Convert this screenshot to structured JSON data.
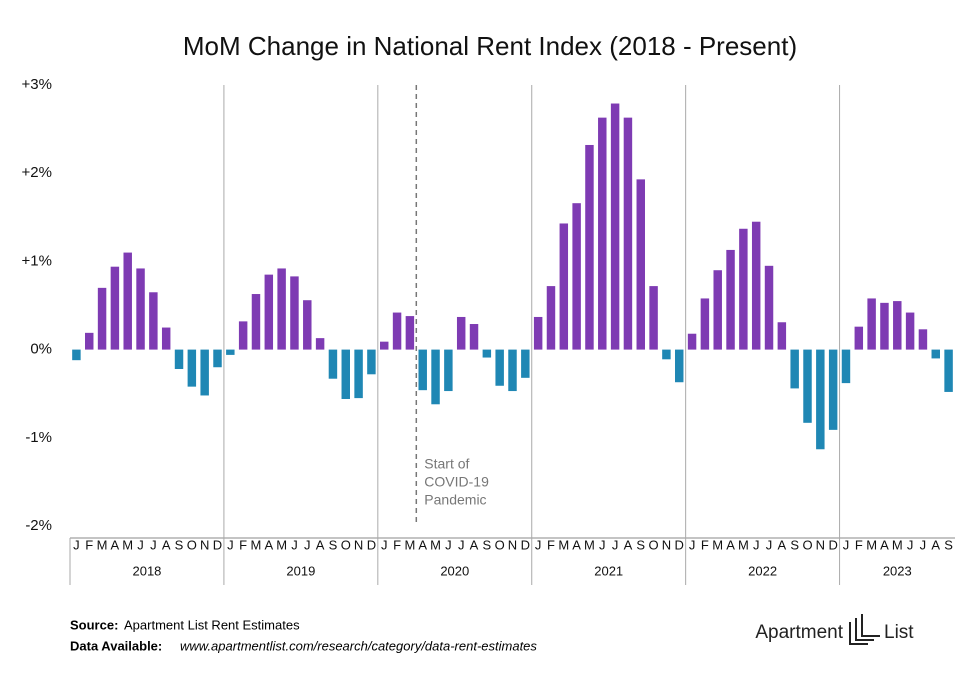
{
  "chart_data": {
    "type": "bar",
    "title": "MoM Change in National Rent Index (2018 - Present)",
    "categories": [
      "J",
      "F",
      "M",
      "A",
      "M",
      "J",
      "J",
      "A",
      "S",
      "O",
      "N",
      "D",
      "J",
      "F",
      "M",
      "A",
      "M",
      "J",
      "J",
      "A",
      "S",
      "O",
      "N",
      "D",
      "J",
      "F",
      "M",
      "A",
      "M",
      "J",
      "J",
      "A",
      "S",
      "O",
      "N",
      "D",
      "J",
      "F",
      "M",
      "A",
      "M",
      "J",
      "J",
      "A",
      "S",
      "O",
      "N",
      "D",
      "J",
      "F",
      "M",
      "A",
      "M",
      "J",
      "J",
      "A",
      "S",
      "O",
      "N",
      "D",
      "J",
      "F",
      "M",
      "A",
      "M",
      "J",
      "J",
      "A",
      "S"
    ],
    "year_labels": [
      "2018",
      "2019",
      "2020",
      "2021",
      "2022",
      "2023"
    ],
    "values": [
      -0.12,
      0.19,
      0.7,
      0.94,
      1.1,
      0.92,
      0.65,
      0.25,
      -0.22,
      -0.42,
      -0.52,
      -0.2,
      -0.06,
      0.32,
      0.63,
      0.85,
      0.92,
      0.83,
      0.56,
      0.13,
      -0.33,
      -0.56,
      -0.55,
      -0.28,
      0.09,
      0.42,
      0.38,
      -0.46,
      -0.62,
      -0.47,
      0.37,
      0.29,
      -0.09,
      -0.41,
      -0.47,
      -0.32,
      0.37,
      0.72,
      1.43,
      1.66,
      2.32,
      2.63,
      2.79,
      2.63,
      1.93,
      0.72,
      -0.11,
      -0.37,
      0.18,
      0.58,
      0.9,
      1.13,
      1.37,
      1.45,
      0.95,
      0.31,
      -0.44,
      -0.83,
      -1.13,
      -0.91,
      -0.38,
      0.26,
      0.58,
      0.53,
      0.55,
      0.42,
      0.23,
      -0.1,
      -0.48
    ],
    "positive_color": "#7e3bb3",
    "negative_color": "#1f87b4",
    "ylim": [
      -2,
      3
    ],
    "yticks": [
      {
        "value": -2,
        "label": "-2%"
      },
      {
        "value": -1,
        "label": "-1%"
      },
      {
        "value": 0,
        "label": "0%"
      },
      {
        "value": 1,
        "label": "+1%"
      },
      {
        "value": 2,
        "label": "+2%"
      },
      {
        "value": 3,
        "label": "+3%"
      }
    ],
    "annotation": [
      "Start of",
      "COVID-19",
      "Pandemic"
    ]
  },
  "footer": {
    "source_label": "Source:",
    "source": "Apartment List Rent Estimates",
    "data_label": "Data Available:",
    "data_url": "www.apartmentlist.com/research/category/data-rent-estimates",
    "logo_left": "Apartment",
    "logo_right": "List"
  }
}
